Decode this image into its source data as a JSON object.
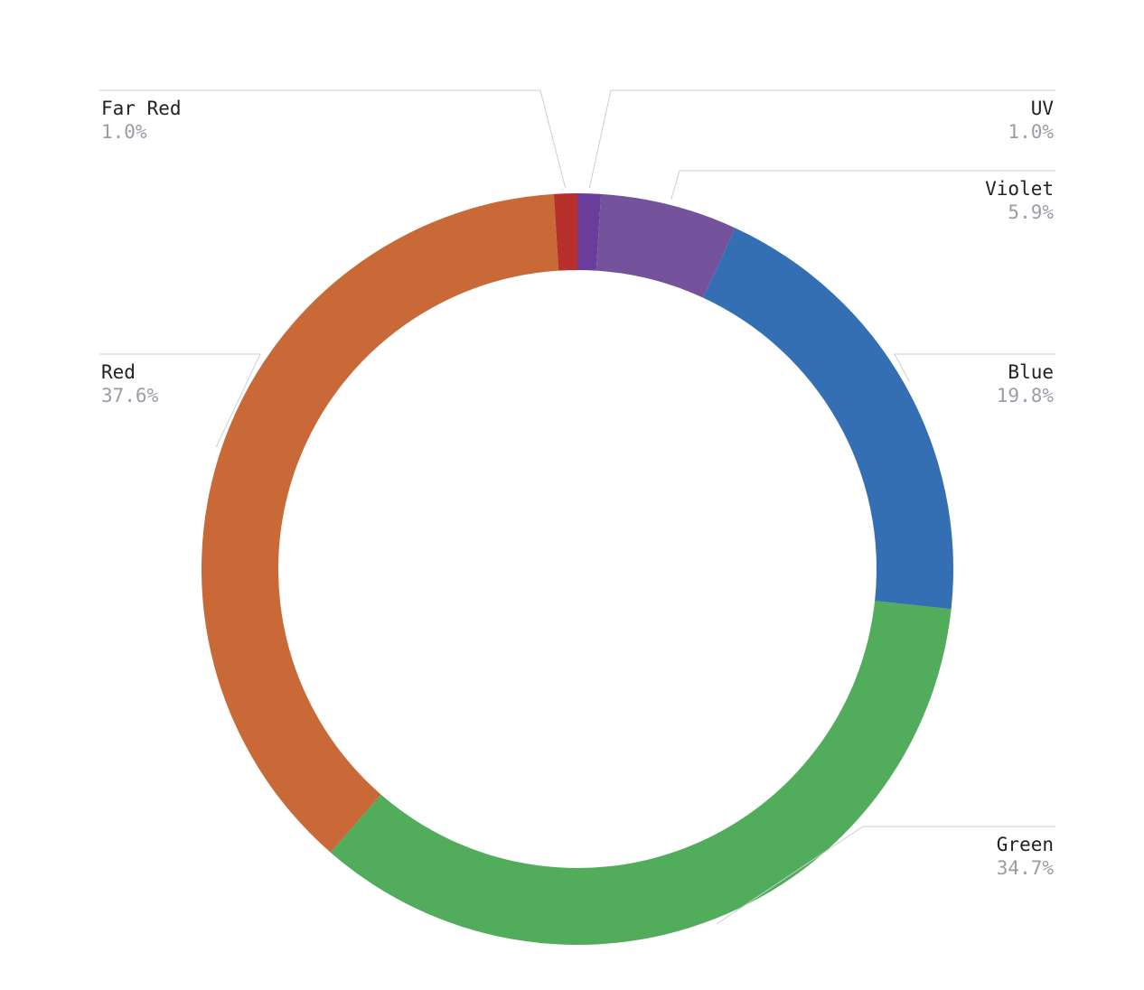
{
  "chart_data": {
    "type": "pie",
    "variant": "donut",
    "start": "top",
    "direction": "clockwise",
    "slices": [
      {
        "name": "UV",
        "label": "1.0%",
        "value": 1.0,
        "color": "#6a3d9a"
      },
      {
        "name": "Violet",
        "label": "5.9%",
        "value": 5.9,
        "color": "#74539c"
      },
      {
        "name": "Blue",
        "label": "19.8%",
        "value": 19.8,
        "color": "#346fb4"
      },
      {
        "name": "Green",
        "label": "34.7%",
        "value": 34.7,
        "color": "#51ac5b"
      },
      {
        "name": "Red",
        "label": "37.6%",
        "value": 37.6,
        "color": "#c86937"
      },
      {
        "name": "Far Red",
        "label": "1.0%",
        "value": 1.0,
        "color": "#b7302c"
      }
    ]
  }
}
